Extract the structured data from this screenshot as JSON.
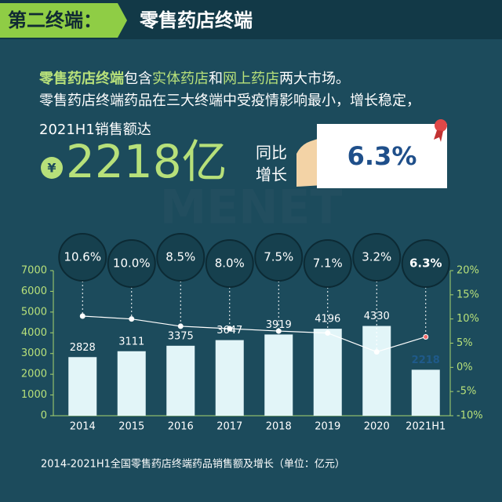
{
  "header": {
    "tag": "第二终端：",
    "title": "零售药店终端"
  },
  "intro": {
    "line1": [
      {
        "text": "零售药店终端",
        "highlight": true
      },
      {
        "text": "包含",
        "highlight": false
      },
      {
        "text": "实体药店",
        "highlight": true
      },
      {
        "text": "和",
        "highlight": false
      },
      {
        "text": "网上药店",
        "highlight": true
      },
      {
        "text": "两大市场。",
        "highlight": false
      }
    ],
    "line2": "零售药店终端药品在三大终端中受疫情影响最小，增长稳定，",
    "line3": "2021H1销售额达"
  },
  "highlight": {
    "currency": "¥",
    "amount": "2218亿",
    "growth_label_1": "同比",
    "growth_label_2": "增长",
    "growth": "6.3%"
  },
  "chart_data": {
    "type": "bar",
    "categories": [
      "2014",
      "2015",
      "2016",
      "2017",
      "2018",
      "2019",
      "2020",
      "2021H1"
    ],
    "series": [
      {
        "type": "bar",
        "color": "#e2f5f8",
        "label_colors": [
          "#ffffff",
          "#ffffff",
          "#ffffff",
          "#ffffff",
          "#ffffff",
          "#ffffff",
          "#ffffff",
          "#1f5a8a"
        ],
        "values": [
          2828,
          3111,
          3375,
          3647,
          3919,
          4196,
          4330,
          2218
        ]
      },
      {
        "type": "line",
        "axis": "y2",
        "color": "#ffffff",
        "point_colors": [
          "#ffffff",
          "#ffffff",
          "#ffffff",
          "#ffffff",
          "#ffffff",
          "#ffffff",
          "#ffffff",
          "#f06a6a"
        ],
        "values": [
          10.6,
          10.0,
          8.5,
          8.0,
          7.5,
          7.1,
          3.2,
          6.3
        ],
        "value_labels": [
          "10.6%",
          "10.0%",
          "8.5%",
          "8.0%",
          "7.5%",
          "7.1%",
          "3.2%",
          "6.3%"
        ]
      }
    ],
    "ylim": [
      0,
      7000
    ],
    "yticks": [
      0,
      1000,
      2000,
      3000,
      4000,
      5000,
      6000,
      7000
    ],
    "y2lim": [
      -10,
      20
    ],
    "y2ticks": [
      {
        "value": -10,
        "label": "-10%"
      },
      {
        "value": -5,
        "label": "-5%"
      },
      {
        "value": 0,
        "label": "0%"
      },
      {
        "value": 5,
        "label": "5%"
      },
      {
        "value": 10,
        "label": "10%"
      },
      {
        "value": 15,
        "label": "15%"
      },
      {
        "value": 20,
        "label": "20%"
      }
    ],
    "caption": "2014-2021H1全国零售药店终端药品销售额及增长（单位：亿元）"
  }
}
